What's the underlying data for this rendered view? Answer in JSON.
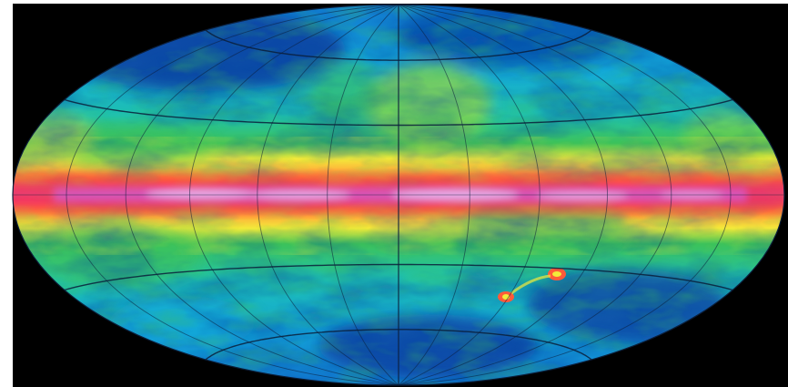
{
  "map": {
    "projection": "hammer-aitoff",
    "content": "all-sky-intensity-map",
    "background_color": "#000000",
    "frame_color": "#ffffff",
    "graticule_color": "#0b1e3a",
    "colormap": [
      "#0a3fa0",
      "#1276d0",
      "#13a8d8",
      "#1fc2b0",
      "#3cc25a",
      "#9ad83a",
      "#f2ea3a",
      "#ffb23a",
      "#ff5a3a",
      "#f0306a",
      "#d35ac8",
      "#e8b8ee"
    ],
    "latitude_lines_deg": [
      -60,
      -30,
      0,
      30,
      60
    ],
    "longitude_lines_deg": [
      -150,
      -120,
      -90,
      -60,
      -30,
      0,
      30,
      60,
      90,
      120,
      150
    ]
  }
}
